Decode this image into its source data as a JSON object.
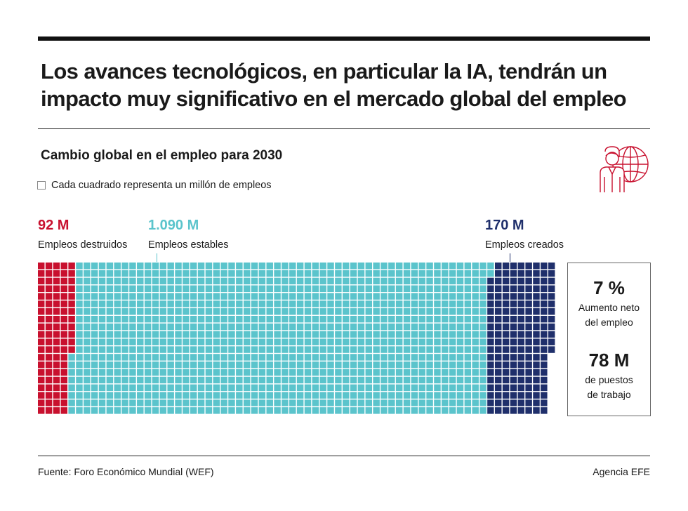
{
  "headline": {
    "line1": "Los avances tecnológicos, en particular la IA, tendrán un",
    "line2": "impacto muy significativo en el mercado global del empleo"
  },
  "subtitle": "Cambio global en el empleo para 2030",
  "legend": "Cada cuadrado representa un millón de empleos",
  "chart_data": {
    "type": "waffle",
    "title": "Cambio global en el empleo para 2030",
    "unit": "Cada cuadrado representa un millón de empleos",
    "series": [
      {
        "name": "Empleos destruidos",
        "label": "92 M",
        "value": 92,
        "color": "#c8102e"
      },
      {
        "name": "Empleos estables",
        "label": "1.090 M",
        "value": 1090,
        "color": "#5bc4cc"
      },
      {
        "name": "Empleos creados",
        "label": "170 M",
        "value": 170,
        "color": "#1f2f6b"
      }
    ]
  },
  "summary": {
    "pct_value": "7 %",
    "pct_line1": "Aumento neto",
    "pct_line2": "del empleo",
    "jobs_value": "78 M",
    "jobs_line1": "de puestos",
    "jobs_line2": "de trabajo"
  },
  "footer": {
    "source": "Fuente: Foro Económico Mundial (WEF)",
    "credit": "Agencia EFE"
  },
  "icon": "person-globe-icon",
  "colors": {
    "destroyed": "#c8102e",
    "stable": "#5bc4cc",
    "created": "#1f2f6b",
    "icon": "#c8102e"
  }
}
